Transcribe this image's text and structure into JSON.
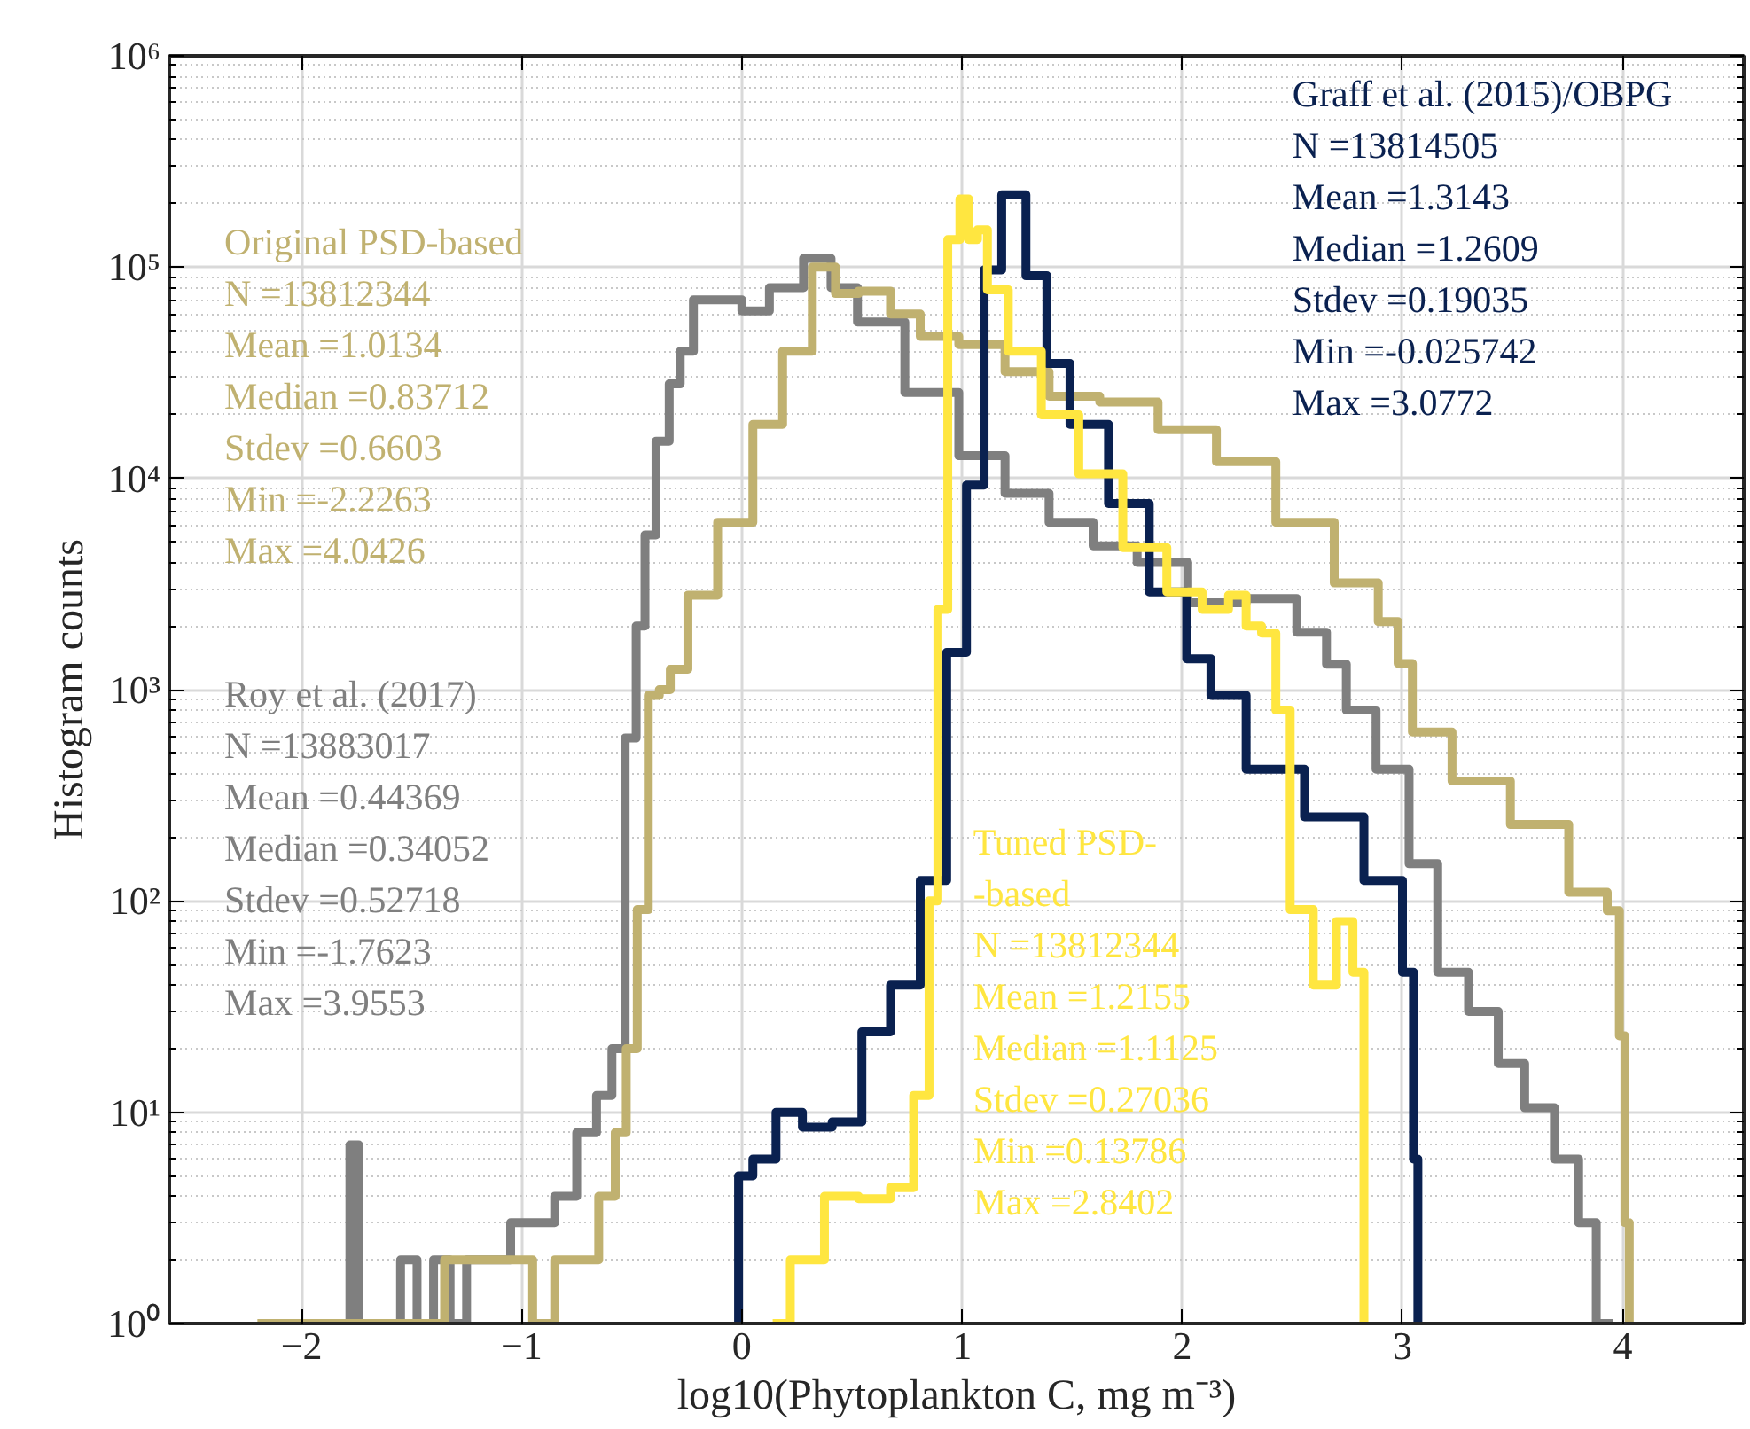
{
  "chart_data": {
    "type": "step",
    "xlabel": "log10(Phytoplankton C, mg m⁻³)",
    "ylabel": "Histogram counts",
    "xlim": [
      -2.6,
      4.55
    ],
    "xticks": [
      -2,
      -1,
      0,
      1,
      2,
      3,
      4
    ],
    "ylim": [
      1,
      1000000
    ],
    "yticks": [
      {
        "value": 1,
        "label": "10⁰"
      },
      {
        "value": 10,
        "label": "10¹"
      },
      {
        "value": 100,
        "label": "10²"
      },
      {
        "value": 1000,
        "label": "10³"
      },
      {
        "value": 10000,
        "label": "10⁴"
      },
      {
        "value": 100000,
        "label": "10⁵"
      },
      {
        "value": 1000000,
        "label": "10⁶"
      }
    ],
    "log": "y",
    "grid": true,
    "series": [
      {
        "color": "#7f7f7f",
        "x": [
          -1.9,
          -1.8,
          -1.76,
          -1.72,
          -1.6,
          -1.5,
          -1.45,
          -1.35,
          -1.3,
          -1.2,
          -1.1,
          -1.0,
          -0.9,
          -0.8,
          -0.7,
          -0.62,
          -0.56,
          -0.5,
          -0.46,
          -0.42,
          -0.36,
          -0.3,
          -0.26,
          -0.18,
          -0.05,
          0.05,
          0.2,
          0.36,
          0.45,
          0.6,
          0.88,
          1.09,
          1.3,
          1.49,
          1.7,
          1.89,
          2.16,
          2.42,
          2.62,
          2.69,
          2.8,
          2.96,
          3.1,
          3.22,
          3.38,
          3.49,
          3.62,
          3.76,
          3.84,
          3.92,
          3.955
        ],
        "values": [
          1,
          1,
          7,
          1,
          1,
          2,
          1,
          2,
          1,
          2,
          2,
          3,
          3,
          4,
          8,
          12,
          20,
          590,
          2000,
          5400,
          15000,
          28000,
          40000,
          70000,
          70000,
          62000,
          80000,
          110000,
          80000,
          55000,
          25500,
          12800,
          8500,
          6200,
          4800,
          4000,
          2580,
          2700,
          1870,
          1320,
          800,
          420,
          150,
          46,
          30,
          17,
          10.5,
          6,
          3,
          1,
          1
        ]
      },
      {
        "color": "#c0b170",
        "x": [
          -2.2,
          -2.0,
          -1.8,
          -1.6,
          -1.4,
          -1.3,
          -1.2,
          -1.1,
          -1.0,
          -0.9,
          -0.8,
          -0.7,
          -0.6,
          -0.55,
          -0.5,
          -0.45,
          -0.4,
          -0.35,
          -0.3,
          -0.19,
          -0.03,
          0.13,
          0.24,
          0.4,
          0.45,
          0.61,
          0.74,
          0.88,
          1.09,
          1.3,
          1.49,
          1.76,
          2.02,
          2.29,
          2.56,
          2.82,
          2.96,
          3.0,
          3.09,
          3.36,
          3.62,
          3.89,
          3.97,
          4.0,
          4.02,
          4.04
        ],
        "values": [
          1,
          1,
          1,
          1,
          1,
          2,
          2,
          2,
          2,
          1,
          2,
          2,
          4,
          8,
          20,
          91,
          940,
          1000,
          1250,
          2800,
          6200,
          18000,
          40000,
          100000,
          75000,
          77000,
          60000,
          47000,
          43000,
          32000,
          24500,
          23000,
          17000,
          12000,
          6200,
          3200,
          2100,
          1330,
          630,
          370,
          230,
          110,
          90,
          23,
          3,
          1
        ]
      },
      {
        "color": "#0a2150",
        "x": [
          -0.03,
          0.0,
          0.1,
          0.21,
          0.34,
          0.48,
          0.61,
          0.74,
          0.88,
          0.98,
          1.06,
          1.14,
          1.22,
          1.36,
          1.41,
          1.57,
          1.76,
          1.94,
          2.1,
          2.16,
          2.42,
          2.69,
          2.96,
          3.04,
          3.06,
          3.08
        ],
        "values": [
          1,
          5,
          6,
          10,
          8.5,
          9,
          24,
          40,
          125,
          1500,
          9300,
          97000,
          220000,
          91000,
          35000,
          18000,
          7600,
          2900,
          1400,
          940,
          420,
          250,
          125,
          46,
          6,
          1
        ]
      },
      {
        "color": "#ffe640",
        "x": [
          0.14,
          0.3,
          0.45,
          0.61,
          0.74,
          0.82,
          0.88,
          0.9,
          0.97,
          1.01,
          1.05,
          1.09,
          1.14,
          1.28,
          1.44,
          1.62,
          1.84,
          2.02,
          2.16,
          2.26,
          2.32,
          2.4,
          2.45,
          2.53,
          2.66,
          2.74,
          2.81,
          2.84
        ],
        "values": [
          1,
          2,
          4,
          3.9,
          4.4,
          12,
          100,
          2400,
          135000,
          210000,
          135000,
          150000,
          78000,
          40000,
          20000,
          10500,
          4700,
          2900,
          2400,
          2800,
          2000,
          1850,
          800,
          91,
          40,
          80,
          46,
          1
        ]
      }
    ],
    "annotations": [
      "Roy et al. (2017)\nN =13883017\nMean =0.44369\nMedian =0.34052\nStdev =0.52718\nMin =-1.7623\nMax =3.9553",
      "Original PSD-based\nN =13812344\nMean =1.0134\nMedian =0.83712\nStdev =0.6603\nMin =-2.2263\nMax =4.0426",
      "Graff et al. (2015)/OBPG\nN =13814505\nMean =1.3143\nMedian =1.2609\nStdev =0.19035\nMin =-0.025742\nMax =3.0772",
      "Tuned PSD-\n-based\nN =13812344\nMean =1.2155\nMedian =1.1125\nStdev =0.27036\nMin =0.13786\nMax =2.8402"
    ]
  }
}
